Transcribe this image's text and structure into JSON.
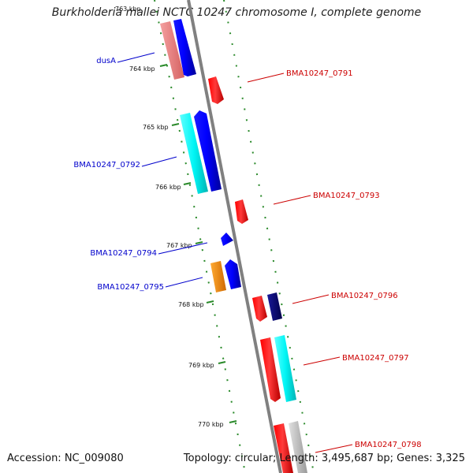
{
  "title": "Burkholderia mallei NCTC 10247 chromosome I, complete genome",
  "footer": {
    "accession": "Accession: NC_009080",
    "summary": "Topology: circular; Length: 3,495,687 bp; Genes: 3,325"
  },
  "ticks": [
    "763 kbp",
    "764 kbp",
    "765 kbp",
    "766 kbp",
    "767 kbp",
    "768 kbp",
    "769 kbp",
    "770 kbp"
  ],
  "genes_left": [
    "dusA",
    "BMA10247_0792",
    "BMA10247_0794",
    "BMA10247_0795"
  ],
  "genes_right": [
    "BMA10247_0791",
    "BMA10247_0793",
    "BMA10247_0796",
    "BMA10247_0797",
    "BMA10247_0798"
  ],
  "colors": {
    "label_left": "#0000cc",
    "label_right": "#cc0000",
    "backbone": "#808080",
    "tick_dots": "#2a8a2a",
    "gene_red": "#ff0000",
    "gene_blue": "#0000ff",
    "gene_navy": "#00008b",
    "gene_cyan": "#00ffff",
    "gene_pink": "#f08080",
    "gene_orange": "#ff8c00",
    "gene_grey": "#c0c0c0"
  }
}
